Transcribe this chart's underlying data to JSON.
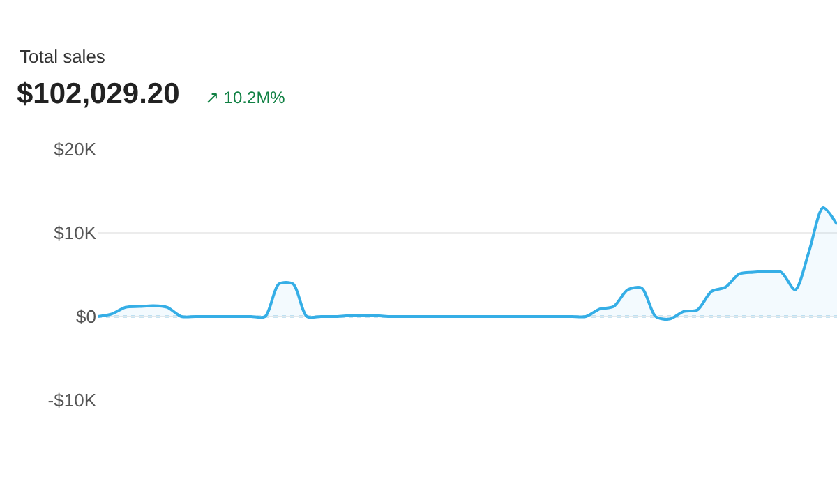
{
  "chart_data": {
    "type": "area",
    "title": "Total sales",
    "subtitle": "$102,029.20",
    "annotations": [
      "↗ 10.2M%"
    ],
    "categories": [
      null,
      null,
      null,
      null,
      null,
      null,
      null,
      null,
      null,
      null,
      null,
      null,
      null,
      null,
      null,
      null,
      null,
      null,
      null,
      null,
      null,
      null,
      null,
      null,
      null,
      null,
      null,
      null,
      null,
      null,
      null,
      null,
      null,
      null,
      null,
      null,
      null,
      null,
      null,
      null,
      null,
      null,
      null,
      null,
      null,
      null,
      null,
      null,
      null,
      null,
      null,
      null,
      null,
      null
    ],
    "series": [
      {
        "color": "#35aee6",
        "values": [
          0,
          300,
          1100,
          1200,
          1300,
          1100,
          0,
          0,
          0,
          0,
          0,
          0,
          0,
          3900,
          3900,
          0,
          0,
          0,
          100,
          100,
          100,
          0,
          0,
          0,
          0,
          0,
          0,
          0,
          0,
          0,
          0,
          0,
          0,
          0,
          0,
          0,
          900,
          1200,
          3200,
          3400,
          0,
          -300,
          600,
          800,
          3000,
          3500,
          5100,
          5300,
          5400,
          5300,
          3200,
          7800,
          13000,
          11000
        ]
      }
    ],
    "ylim": [
      -10000,
      20000
    ],
    "yticks": [
      {
        "value": -10000,
        "label": "-$10K"
      },
      {
        "value": 0,
        "label": "$0"
      },
      {
        "value": 10000,
        "label": "$10K"
      },
      {
        "value": 20000,
        "label": "$20K"
      }
    ],
    "grid": "y",
    "tick_labels": "y",
    "legend": false,
    "marker": "none",
    "line_style": "solid",
    "ref_lines": [
      {
        "axis": "y",
        "value": 0,
        "line_style": "dotted",
        "color": "#8fc9e6"
      }
    ]
  }
}
